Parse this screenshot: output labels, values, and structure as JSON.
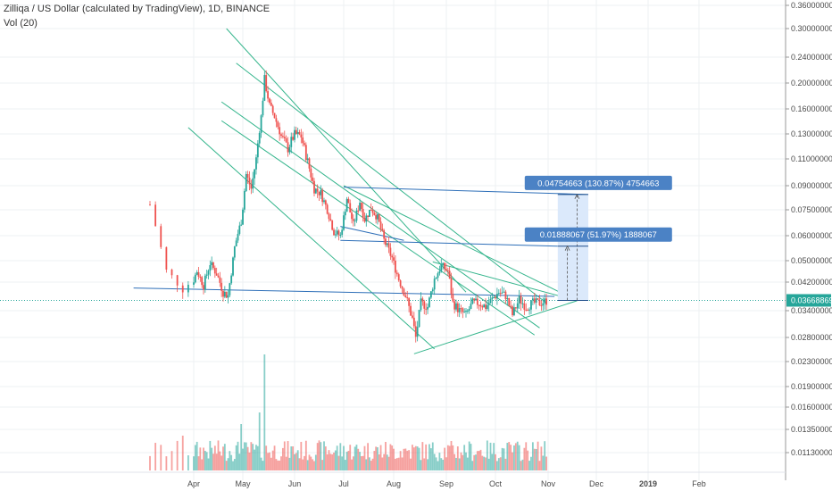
{
  "header": {
    "title": "Zilliqa / US Dollar (calculated by TradingView), 1D, BINANCE",
    "volume_label": "Vol (20)"
  },
  "colors": {
    "up": "#26a69a",
    "down": "#ef5350",
    "trend_green": "#34b58c",
    "trend_blue": "#2e6fb8",
    "price_line": "#26a69a",
    "projection_fill": "#dbe9fb",
    "label_bg": "#4b82c5",
    "current_price_bg": "#26a69a"
  },
  "chart_data": {
    "type": "candlestick",
    "symbol": "Zilliqa / US Dollar",
    "interval": "1D",
    "exchange": "BINANCE",
    "x_months": [
      "Apr",
      "May",
      "Jun",
      "Jul",
      "Aug",
      "Sep",
      "Oct",
      "Nov",
      "Dec",
      "2019",
      "Feb"
    ],
    "y_ticks": [
      "0.36000000",
      "0.30000000",
      "0.24000000",
      "0.20000000",
      "0.16000000",
      "0.13000000",
      "0.11000000",
      "0.09000000",
      "0.07500000",
      "0.06000000",
      "0.05000000",
      "0.04200000",
      "0.03400000",
      "0.02800000",
      "0.02300000",
      "0.01900000",
      "0.01600000",
      "0.01350000",
      "0.01130000"
    ],
    "y_scale": "log",
    "current_price": "0.03668869",
    "price_path": [
      {
        "date": "2018-03-24",
        "close": 0.078
      },
      {
        "date": "2018-03-27",
        "close": 0.046
      },
      {
        "date": "2018-03-30",
        "close": 0.04
      },
      {
        "date": "2018-04-03",
        "close": 0.046
      },
      {
        "date": "2018-04-07",
        "close": 0.041
      },
      {
        "date": "2018-04-11",
        "close": 0.049
      },
      {
        "date": "2018-04-15",
        "close": 0.045
      },
      {
        "date": "2018-04-19",
        "close": 0.039
      },
      {
        "date": "2018-04-22",
        "close": 0.038
      },
      {
        "date": "2018-04-26",
        "close": 0.055
      },
      {
        "date": "2018-04-30",
        "close": 0.068
      },
      {
        "date": "2018-05-03",
        "close": 0.098
      },
      {
        "date": "2018-05-06",
        "close": 0.088
      },
      {
        "date": "2018-05-09",
        "close": 0.11
      },
      {
        "date": "2018-05-12",
        "close": 0.15
      },
      {
        "date": "2018-05-14",
        "close": 0.205
      },
      {
        "date": "2018-05-17",
        "close": 0.165
      },
      {
        "date": "2018-05-20",
        "close": 0.15
      },
      {
        "date": "2018-05-24",
        "close": 0.128
      },
      {
        "date": "2018-05-28",
        "close": 0.118
      },
      {
        "date": "2018-06-01",
        "close": 0.13
      },
      {
        "date": "2018-06-05",
        "close": 0.128
      },
      {
        "date": "2018-06-09",
        "close": 0.108
      },
      {
        "date": "2018-06-13",
        "close": 0.088
      },
      {
        "date": "2018-06-17",
        "close": 0.085
      },
      {
        "date": "2018-06-21",
        "close": 0.075
      },
      {
        "date": "2018-06-25",
        "close": 0.062
      },
      {
        "date": "2018-06-29",
        "close": 0.06
      },
      {
        "date": "2018-07-03",
        "close": 0.082
      },
      {
        "date": "2018-07-07",
        "close": 0.066
      },
      {
        "date": "2018-07-11",
        "close": 0.08
      },
      {
        "date": "2018-07-14",
        "close": 0.069
      },
      {
        "date": "2018-07-18",
        "close": 0.076
      },
      {
        "date": "2018-07-22",
        "close": 0.07
      },
      {
        "date": "2018-07-26",
        "close": 0.058
      },
      {
        "date": "2018-07-31",
        "close": 0.051
      },
      {
        "date": "2018-08-04",
        "close": 0.043
      },
      {
        "date": "2018-08-08",
        "close": 0.038
      },
      {
        "date": "2018-08-12",
        "close": 0.032
      },
      {
        "date": "2018-08-14",
        "close": 0.028
      },
      {
        "date": "2018-08-17",
        "close": 0.036
      },
      {
        "date": "2018-08-21",
        "close": 0.035
      },
      {
        "date": "2018-08-25",
        "close": 0.043
      },
      {
        "date": "2018-08-29",
        "close": 0.048
      },
      {
        "date": "2018-09-02",
        "close": 0.046
      },
      {
        "date": "2018-09-05",
        "close": 0.036
      },
      {
        "date": "2018-09-09",
        "close": 0.034
      },
      {
        "date": "2018-09-13",
        "close": 0.033
      },
      {
        "date": "2018-09-17",
        "close": 0.036
      },
      {
        "date": "2018-09-21",
        "close": 0.036
      },
      {
        "date": "2018-09-25",
        "close": 0.035
      },
      {
        "date": "2018-09-29",
        "close": 0.037
      },
      {
        "date": "2018-10-03",
        "close": 0.039
      },
      {
        "date": "2018-10-07",
        "close": 0.038
      },
      {
        "date": "2018-10-11",
        "close": 0.033
      },
      {
        "date": "2018-10-15",
        "close": 0.037
      },
      {
        "date": "2018-10-19",
        "close": 0.035
      },
      {
        "date": "2018-10-23",
        "close": 0.036
      },
      {
        "date": "2018-10-27",
        "close": 0.036
      },
      {
        "date": "2018-11-01",
        "close": 0.0367
      }
    ],
    "volume_spikes": [
      {
        "date": "2018-05-14",
        "relative": 1.0
      },
      {
        "date": "2018-05-11",
        "relative": 0.5
      },
      {
        "date": "2018-04-30",
        "relative": 0.4
      },
      {
        "date": "2018-03-30",
        "relative": 0.3
      }
    ],
    "annotations": [
      {
        "label": "0.04754663 (130.87%) 4754663",
        "target_price": 0.0842
      },
      {
        "label": "0.01888067 (51.97%) 1888067",
        "target_price": 0.0556
      }
    ]
  }
}
